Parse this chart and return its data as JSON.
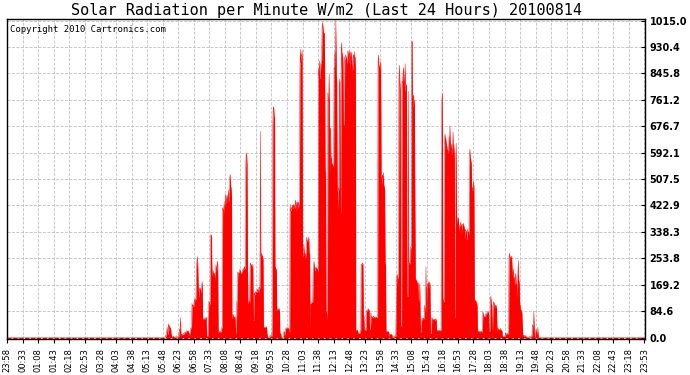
{
  "title": "Solar Radiation per Minute W/m2 (Last 24 Hours) 20100814",
  "copyright": "Copyright 2010 Cartronics.com",
  "fill_color": "#FF0000",
  "line_color": "#FF0000",
  "background_color": "#FFFFFF",
  "grid_color": "#C0C0C0",
  "dashed_line_color": "#FF0000",
  "ymin": 0.0,
  "ymax": 1015.0,
  "yticks": [
    0.0,
    84.6,
    169.2,
    253.8,
    338.3,
    422.9,
    507.5,
    592.1,
    676.7,
    761.2,
    845.8,
    930.4,
    1015.0
  ],
  "title_fontsize": 11,
  "copyright_fontsize": 6.5,
  "tick_fontsize": 6,
  "ytick_fontsize": 7
}
